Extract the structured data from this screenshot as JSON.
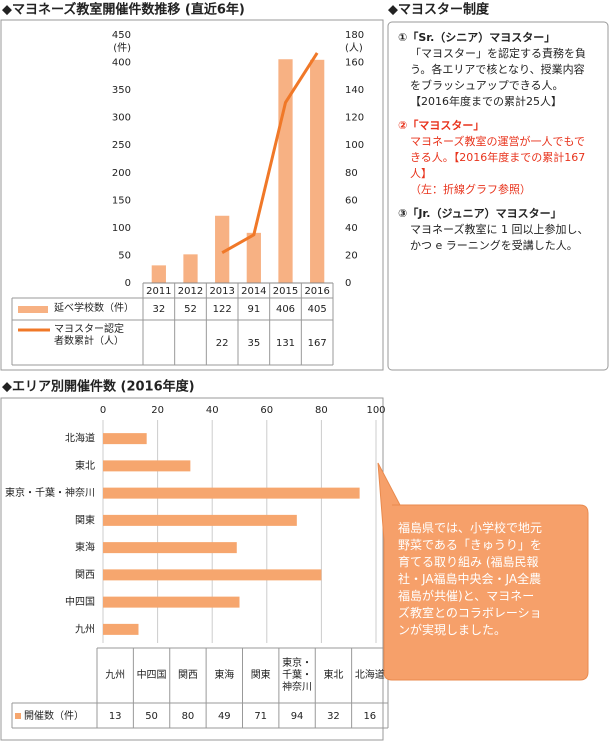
{
  "chart_data": [
    {
      "type": "bar",
      "title": "◆マヨネーズ教室開催件数推移 (直近6年)",
      "categories": [
        "2011",
        "2012",
        "2013",
        "2014",
        "2015",
        "2016"
      ],
      "series": [
        {
          "name": "延べ学校数（件）",
          "color": "#f7b183",
          "values": [
            32,
            52,
            122,
            91,
            406,
            405
          ]
        },
        {
          "name": "マヨスター認定者数累計（人）",
          "type": "line",
          "axis": "y2",
          "color": "#f07828",
          "values": [
            null,
            null,
            22,
            35,
            131,
            167
          ]
        }
      ],
      "ylabel": "(件)",
      "y2label": "(人)",
      "ylim": [
        0,
        450
      ],
      "yticks": [
        0,
        50,
        100,
        150,
        200,
        250,
        300,
        350,
        400,
        450
      ],
      "y2lim": [
        0,
        180
      ],
      "y2ticks": [
        0,
        20,
        40,
        60,
        80,
        100,
        120,
        140,
        160,
        180
      ]
    },
    {
      "type": "hbar",
      "title": "◆エリア別開催件数 (2016年度)",
      "categories": [
        "九州",
        "中四国",
        "関西",
        "東海",
        "関東",
        "東京・千葉・神奈川",
        "東北",
        "北海道"
      ],
      "series": [
        {
          "name": "開催数（件）",
          "color": "#f6a66e",
          "values": [
            13,
            50,
            80,
            49,
            71,
            94,
            32,
            16
          ]
        }
      ],
      "xlim": [
        0,
        100
      ],
      "xticks": [
        0,
        20,
        40,
        60,
        80,
        100
      ],
      "grid": true,
      "annotation": "福島県では、小学校で地元野菜である「きゅうり」を育てる取り組み (福島民報社・JA福島中央会・JA全農福島が共催)と、マヨネーズ教室とのコラボレーションが実現しました。"
    }
  ],
  "side_panel": {
    "title": "◆マヨスター制度",
    "items": [
      {
        "heading": "①「Sr.（シニア）マヨスター」",
        "body": [
          "「マヨスター」を認定する責務を負う。各エリアで核となり、授業内容をブラッシュアップできる人。",
          "【2016年度までの累計25人】"
        ]
      },
      {
        "heading": "②「マヨスター」",
        "body": [
          "マヨネーズ教室の運営が一人でもできる人。【2016年度までの累計167人】",
          "（左：折線グラフ参照）"
        ]
      },
      {
        "heading": "③「Jr.（ジュニア）マヨスター」",
        "body": [
          "マヨネーズ教室に 1 回以上参加し、かつ e ラーニングを受講した人。"
        ]
      }
    ]
  }
}
